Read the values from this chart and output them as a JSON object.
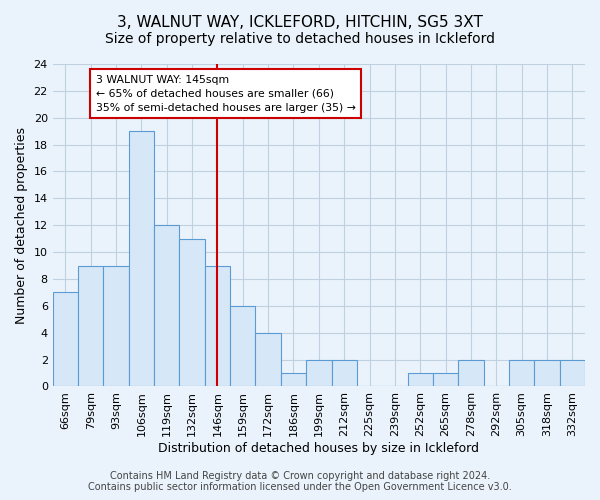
{
  "title": "3, WALNUT WAY, ICKLEFORD, HITCHIN, SG5 3XT",
  "subtitle": "Size of property relative to detached houses in Ickleford",
  "xlabel": "Distribution of detached houses by size in Ickleford",
  "ylabel": "Number of detached properties",
  "footer_line1": "Contains HM Land Registry data © Crown copyright and database right 2024.",
  "footer_line2": "Contains public sector information licensed under the Open Government Licence v3.0.",
  "bin_labels": [
    "66sqm",
    "79sqm",
    "93sqm",
    "106sqm",
    "119sqm",
    "132sqm",
    "146sqm",
    "159sqm",
    "172sqm",
    "186sqm",
    "199sqm",
    "212sqm",
    "225sqm",
    "239sqm",
    "252sqm",
    "265sqm",
    "278sqm",
    "292sqm",
    "305sqm",
    "318sqm",
    "332sqm"
  ],
  "bin_heights": [
    7,
    9,
    9,
    19,
    12,
    11,
    9,
    6,
    4,
    1,
    2,
    2,
    0,
    0,
    1,
    1,
    2,
    0,
    2,
    2,
    2
  ],
  "bar_fill_color": "#d6e8f7",
  "bar_edge_color": "#5b9bd5",
  "vline_x_index": 6,
  "vline_color": "#cc0000",
  "annotation_line1": "3 WALNUT WAY: 145sqm",
  "annotation_line2": "← 65% of detached houses are smaller (66)",
  "annotation_line3": "35% of semi-detached houses are larger (35) →",
  "annotation_box_edge_color": "#cc0000",
  "annotation_box_face_color": "#ffffff",
  "ylim": [
    0,
    24
  ],
  "yticks": [
    0,
    2,
    4,
    6,
    8,
    10,
    12,
    14,
    16,
    18,
    20,
    22,
    24
  ],
  "grid_color": "#c0d0e0",
  "bg_color": "#eaf3fb",
  "title_fontsize": 11,
  "subtitle_fontsize": 10,
  "xlabel_fontsize": 9,
  "ylabel_fontsize": 9,
  "tick_fontsize": 8,
  "footer_fontsize": 7
}
